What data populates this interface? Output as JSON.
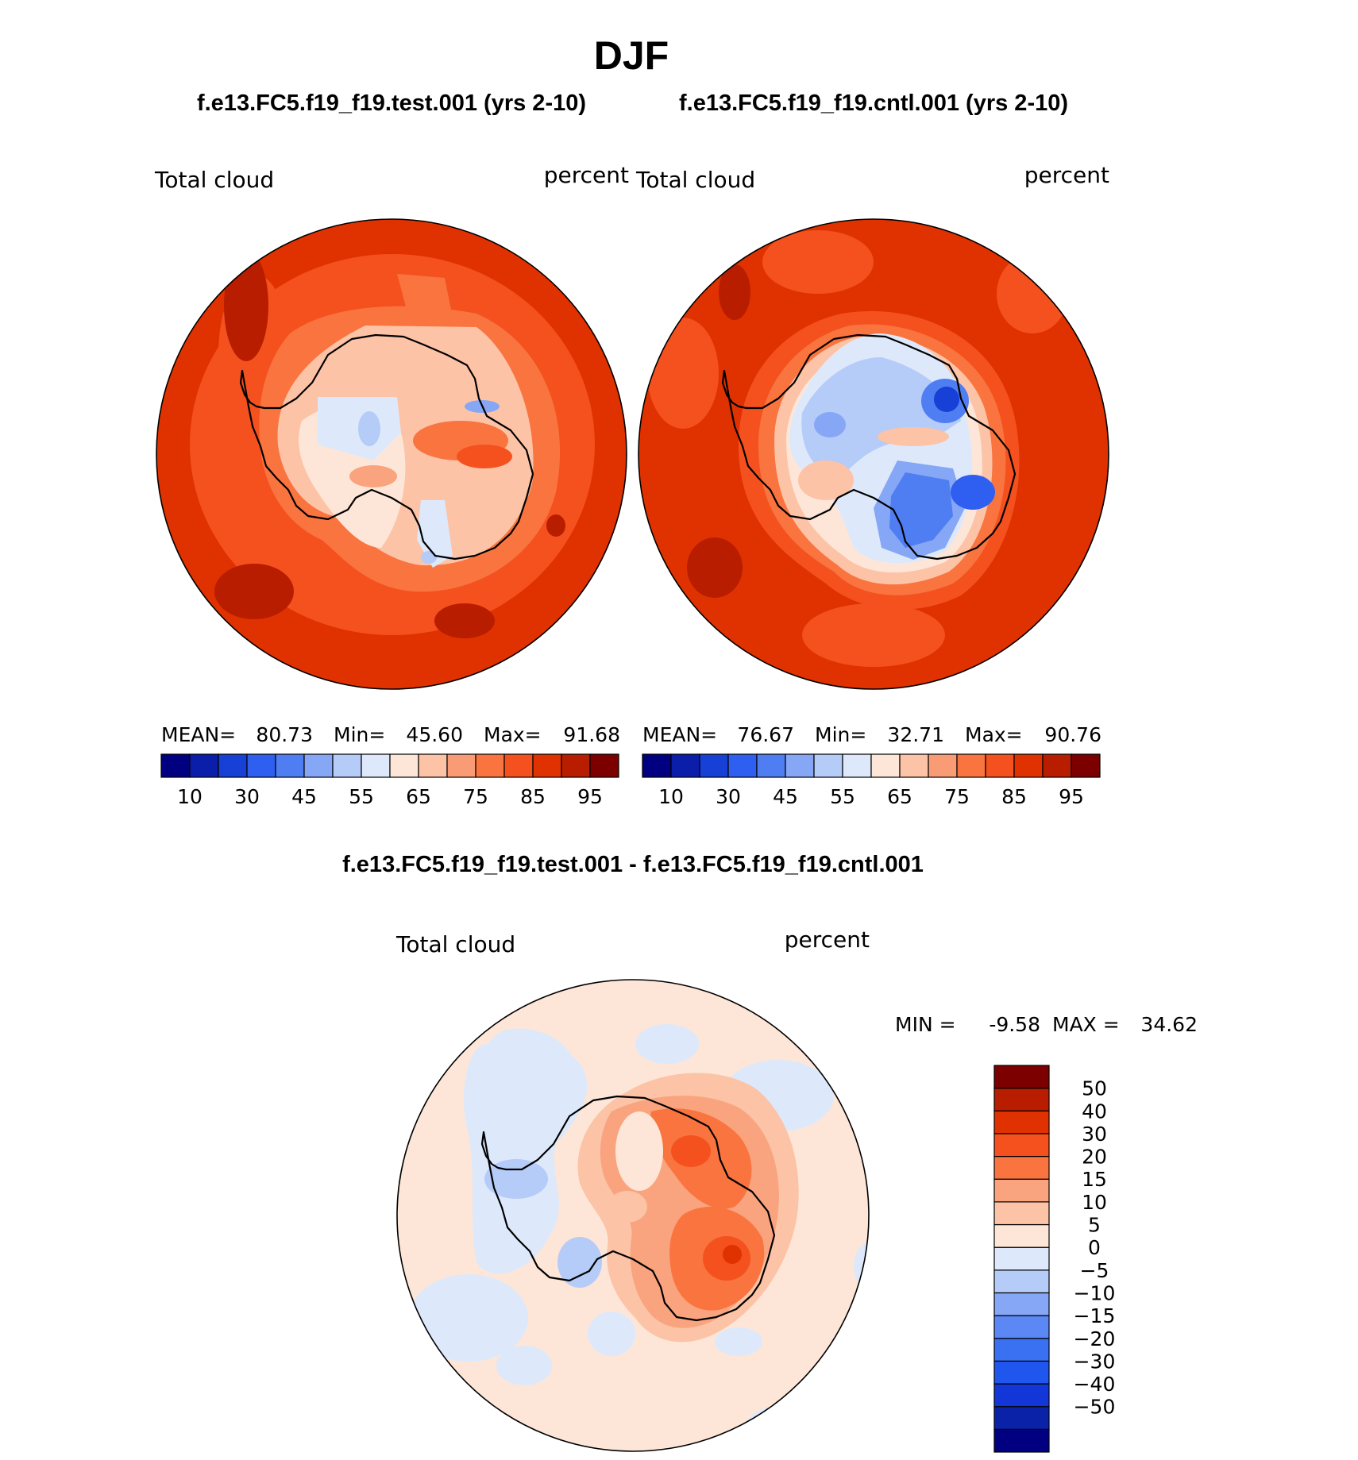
{
  "season": "DJF",
  "panels": [
    {
      "case": "f.e13.FC5.f19_f19.test.001 (yrs 2-10)",
      "variable": "Total cloud",
      "units": "percent",
      "stats": {
        "mean_label": "MEAN=",
        "mean": "80.73",
        "min_label": "Min=",
        "min": "45.60",
        "max_label": "Max=",
        "max": "91.68"
      }
    },
    {
      "case": "f.e13.FC5.f19_f19.cntl.001 (yrs 2-10)",
      "variable": "Total cloud",
      "units": "percent",
      "stats": {
        "mean_label": "MEAN=",
        "mean": "76.67",
        "min_label": "Min=",
        "min": "32.71",
        "max_label": "Max=",
        "max": "90.76"
      }
    }
  ],
  "diff": {
    "title": "f.e13.FC5.f19_f19.test.001 - f.e13.FC5.f19_f19.cntl.001",
    "variable": "Total cloud",
    "units": "percent",
    "min_label": "MIN =",
    "min": "-9.58",
    "max_label": "MAX =",
    "max": "34.62"
  },
  "colors": {
    "abs_scale": [
      "#000080",
      "#0a1eaa",
      "#1640d6",
      "#2e5ff0",
      "#4f7ef3",
      "#86a6f6",
      "#b5cbf8",
      "#dde9fb",
      "#fde6d7",
      "#fcc3a6",
      "#f99b74",
      "#f9743f",
      "#f4511e",
      "#e03200",
      "#b81d00",
      "#7c0000"
    ],
    "abs_labels": [
      "10",
      "30",
      "45",
      "55",
      "65",
      "75",
      "85",
      "95"
    ],
    "diff_scale": [
      "#000080",
      "#0a22a8",
      "#1236d8",
      "#1e56ee",
      "#3a70f2",
      "#5b88f4",
      "#86a6f6",
      "#b5cbf8",
      "#dde9fb",
      "#fde6d7",
      "#fcc3a6",
      "#f9a47e",
      "#f9743f",
      "#f4511e",
      "#e03200",
      "#b81d00",
      "#7c0000"
    ],
    "diff_labels": [
      "50",
      "40",
      "30",
      "20",
      "15",
      "10",
      "5",
      "0",
      "−5",
      "−10",
      "−15",
      "−20",
      "−30",
      "−40",
      "−50"
    ],
    "ocean_test": "#e03200",
    "ocean_cntl": "#e03200",
    "ocean_diff": "#fde6d7"
  }
}
